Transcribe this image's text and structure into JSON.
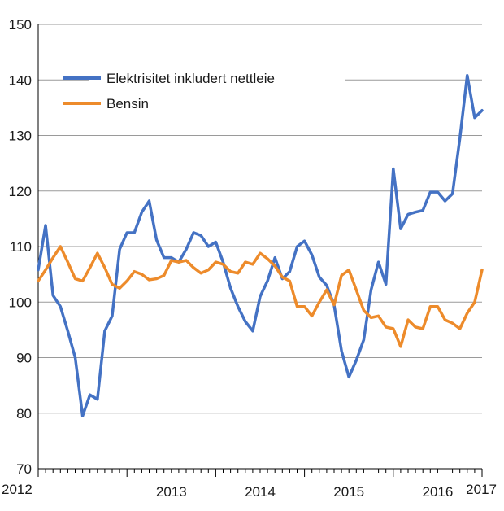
{
  "chart_data": {
    "type": "line",
    "title": "",
    "xlabel": "",
    "ylabel": "",
    "ylim": [
      70,
      150
    ],
    "yticks": [
      70,
      80,
      90,
      100,
      110,
      120,
      130,
      140,
      150
    ],
    "xlim": [
      2012,
      2017
    ],
    "xticks": [
      {
        "value": 2012,
        "label": "2012"
      },
      {
        "value": 2013,
        "label": "2013"
      },
      {
        "value": 2014,
        "label": "2014"
      },
      {
        "value": 2015,
        "label": "2015"
      },
      {
        "value": 2016,
        "label": "2016"
      },
      {
        "value": 2017,
        "label": "2017"
      }
    ],
    "grid": "horizontal",
    "legend_position": "top-left",
    "x": [
      2012.0,
      2012.083,
      2012.167,
      2012.25,
      2012.333,
      2012.417,
      2012.5,
      2012.583,
      2012.667,
      2012.75,
      2012.833,
      2012.917,
      2013.0,
      2013.083,
      2013.167,
      2013.25,
      2013.333,
      2013.417,
      2013.5,
      2013.583,
      2013.667,
      2013.75,
      2013.833,
      2013.917,
      2014.0,
      2014.083,
      2014.167,
      2014.25,
      2014.333,
      2014.417,
      2014.5,
      2014.583,
      2014.667,
      2014.75,
      2014.833,
      2014.917,
      2015.0,
      2015.083,
      2015.167,
      2015.25,
      2015.333,
      2015.417,
      2015.5,
      2015.583,
      2015.667,
      2015.75,
      2015.833,
      2015.917,
      2016.0,
      2016.083,
      2016.167,
      2016.25,
      2016.333,
      2016.417,
      2016.5,
      2016.583,
      2016.667,
      2016.75,
      2016.833,
      2016.917,
      2017.0
    ],
    "series": [
      {
        "name": "Elektrisitet inkludert nettleie",
        "color": "#4472c4",
        "values": [
          105.8,
          113.8,
          101.2,
          99.2,
          94.8,
          90.0,
          79.5,
          83.3,
          82.5,
          94.8,
          97.5,
          109.5,
          112.5,
          112.5,
          116.2,
          118.2,
          111.2,
          108.0,
          108.0,
          107.2,
          109.5,
          112.5,
          112.0,
          110.0,
          110.8,
          107.2,
          102.5,
          99.2,
          96.5,
          94.8,
          101.0,
          103.8,
          108.0,
          104.2,
          105.5,
          110.0,
          111.0,
          108.5,
          104.5,
          103.0,
          99.5,
          91.2,
          86.5,
          89.5,
          93.2,
          102.2,
          107.2,
          103.2,
          124.0,
          113.2,
          115.8,
          116.2,
          116.5,
          119.8,
          119.8,
          118.2,
          119.5,
          129.5,
          140.8,
          133.2,
          134.5
        ]
      },
      {
        "name": "Bensin",
        "color": "#ed8b2b",
        "values": [
          103.8,
          105.8,
          108.0,
          110.0,
          107.2,
          104.2,
          103.8,
          106.2,
          108.8,
          106.2,
          103.2,
          102.5,
          103.8,
          105.5,
          105.0,
          104.0,
          104.2,
          104.8,
          107.5,
          107.2,
          107.5,
          106.2,
          105.2,
          105.8,
          107.2,
          106.8,
          105.5,
          105.2,
          107.2,
          106.8,
          108.8,
          107.8,
          106.5,
          104.5,
          103.8,
          99.2,
          99.2,
          97.5,
          100.0,
          102.2,
          99.5,
          104.8,
          105.8,
          102.2,
          98.5,
          97.2,
          97.5,
          95.5,
          95.2,
          92.0,
          96.8,
          95.5,
          95.2,
          99.2,
          99.2,
          96.8,
          96.2,
          95.2,
          98.0,
          100.0,
          105.8
        ]
      }
    ]
  }
}
